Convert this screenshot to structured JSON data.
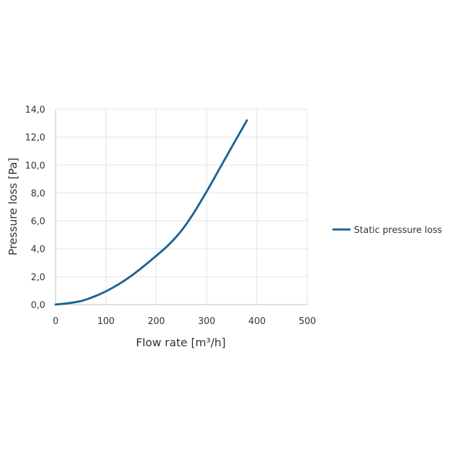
{
  "chart_data": {
    "type": "line",
    "title": "",
    "xlabel": "Flow rate [m³/h]",
    "ylabel": "Pressure loss [Pa]",
    "xlim": [
      0,
      500
    ],
    "ylim": [
      0,
      14
    ],
    "x_ticks": [
      "0",
      "100",
      "200",
      "300",
      "400",
      "500"
    ],
    "y_ticks": [
      "0,0",
      "2,0",
      "4,0",
      "6,0",
      "8,0",
      "10,0",
      "12,0",
      "14,0"
    ],
    "grid": true,
    "legend_position": "right",
    "series": [
      {
        "name": "Static pressure loss",
        "color": "#1a6496",
        "x": [
          0,
          25,
          50,
          75,
          100,
          125,
          150,
          175,
          200,
          225,
          250,
          275,
          300,
          325,
          350,
          380
        ],
        "y": [
          0,
          0.1,
          0.25,
          0.55,
          0.95,
          1.45,
          2.05,
          2.75,
          3.5,
          4.3,
          5.3,
          6.6,
          8.1,
          9.7,
          11.3,
          13.2
        ]
      }
    ]
  }
}
